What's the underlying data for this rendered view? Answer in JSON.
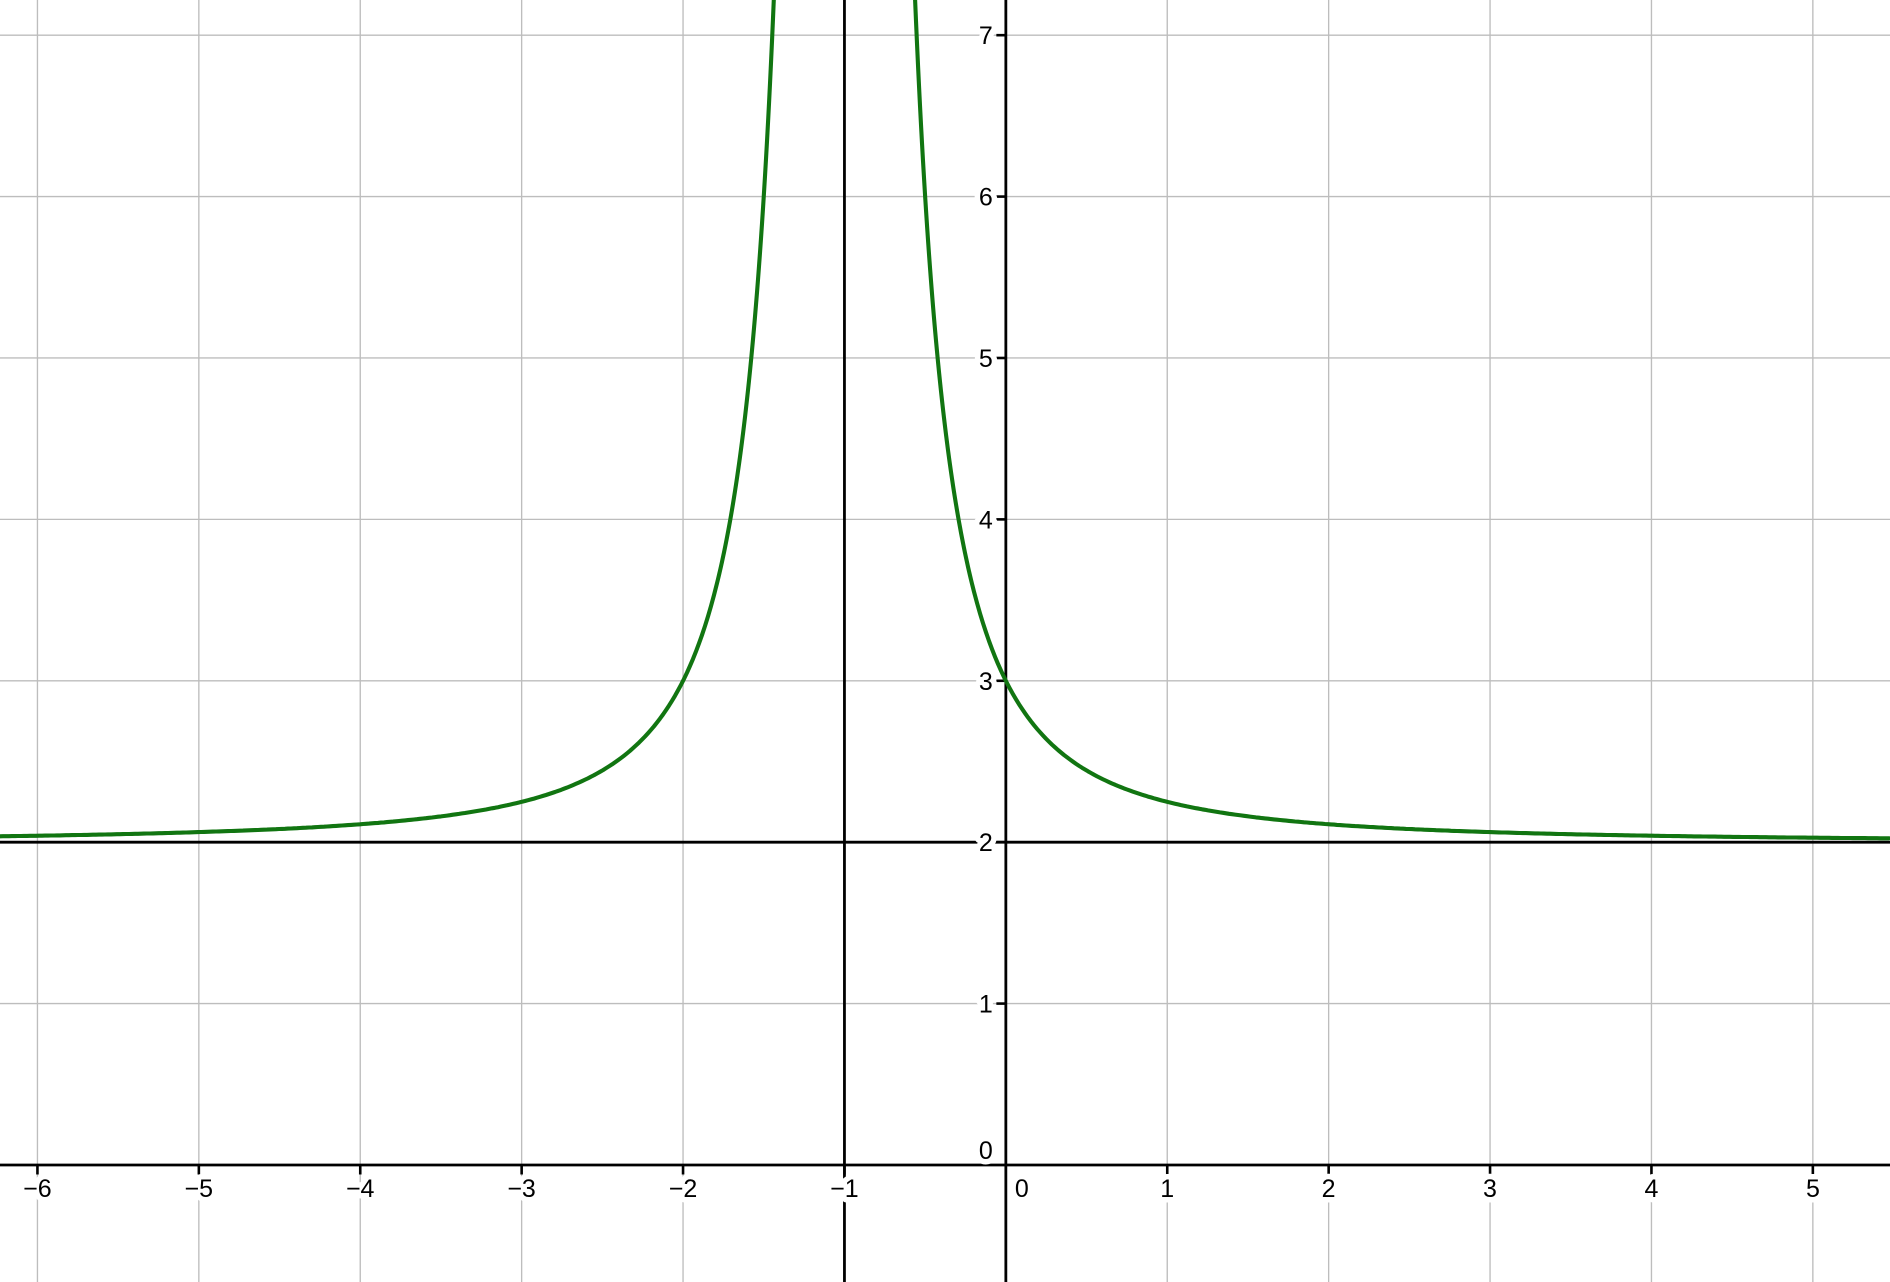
{
  "chart_data": {
    "type": "line",
    "title": "",
    "description": "Graph of a reciprocal-square function with vertical asymptote x = -1 and horizontal asymptote y = 2",
    "function": {
      "formula": "f(x) = 1/(x + 1)^2 + 2",
      "h": -1,
      "k": 2,
      "color": "#117511",
      "stroke_width": 4.1,
      "points_on_curve": [
        {
          "x": -2,
          "y": 3
        },
        {
          "x": 0,
          "y": 3
        },
        {
          "x": 1,
          "y": 2.25
        }
      ]
    },
    "asymptotes": {
      "vertical_x": -1,
      "horizontal_y": 2,
      "color": "#000000",
      "stroke_width": 2.8
    },
    "axes": {
      "color": "#000000",
      "stroke_width": 2.8,
      "tick_length": 9.5,
      "x_ticks": {
        "values": [
          -6,
          -5,
          -4,
          -3,
          -2,
          -1,
          0,
          1,
          2,
          3,
          4,
          5
        ],
        "labels": [
          "−6",
          "−5",
          "−4",
          "−3",
          "−2",
          "−1",
          "0",
          "1",
          "2",
          "3",
          "4",
          "5"
        ]
      },
      "y_ticks": {
        "values": [
          0,
          1,
          2,
          3,
          4,
          5,
          6,
          7
        ],
        "labels": [
          "0",
          "1",
          "2",
          "3",
          "4",
          "5",
          "6",
          "7"
        ]
      }
    },
    "view": {
      "xmin": -6.232,
      "xmax": 5.478,
      "ymin": -0.725,
      "ymax": 7.218
    },
    "grid": {
      "show": true,
      "spacing": 1,
      "color": "#bdbdbd",
      "stroke_width": 1.35
    },
    "colors": {
      "background": "#ffffff",
      "label": "#000000",
      "label_halo": "#ffffff"
    }
  }
}
